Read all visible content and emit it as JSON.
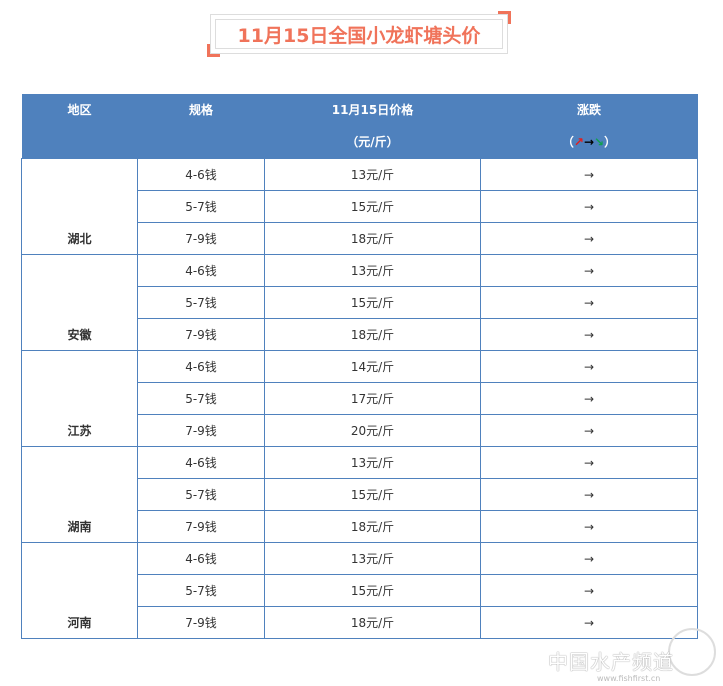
{
  "title": "11月15日全国小龙虾塘头价",
  "header": {
    "region": "地区",
    "spec": "规格",
    "price": "11月15日价格",
    "price_unit": "（元/斤）",
    "change": "涨跌",
    "legend_open": "（",
    "legend_up": "↗",
    "legend_flat": "→",
    "legend_down": "↘",
    "legend_close": "）"
  },
  "groups": [
    {
      "region": "湖北",
      "rows": [
        {
          "spec": "4-6钱",
          "price": "13元/斤",
          "change": "→"
        },
        {
          "spec": "5-7钱",
          "price": "15元/斤",
          "change": "→"
        },
        {
          "spec": "7-9钱",
          "price": "18元/斤",
          "change": "→"
        }
      ]
    },
    {
      "region": "安徽",
      "rows": [
        {
          "spec": "4-6钱",
          "price": "13元/斤",
          "change": "→"
        },
        {
          "spec": "5-7钱",
          "price": "15元/斤",
          "change": "→"
        },
        {
          "spec": "7-9钱",
          "price": "18元/斤",
          "change": "→"
        }
      ]
    },
    {
      "region": "江苏",
      "rows": [
        {
          "spec": "4-6钱",
          "price": "14元/斤",
          "change": "→"
        },
        {
          "spec": "5-7钱",
          "price": "17元/斤",
          "change": "→"
        },
        {
          "spec": "7-9钱",
          "price": "20元/斤",
          "change": "→"
        }
      ]
    },
    {
      "region": "湖南",
      "rows": [
        {
          "spec": "4-6钱",
          "price": "13元/斤",
          "change": "→"
        },
        {
          "spec": "5-7钱",
          "price": "15元/斤",
          "change": "→"
        },
        {
          "spec": "7-9钱",
          "price": "18元/斤",
          "change": "→"
        }
      ]
    },
    {
      "region": "河南",
      "rows": [
        {
          "spec": "4-6钱",
          "price": "13元/斤",
          "change": "→"
        },
        {
          "spec": "5-7钱",
          "price": "15元/斤",
          "change": "→"
        },
        {
          "spec": "7-9钱",
          "price": "18元/斤",
          "change": "→"
        }
      ]
    }
  ],
  "watermark": {
    "name": "中国水产频道",
    "url": "www.fishfirst.cn"
  },
  "colors": {
    "title": "#f0735a",
    "header_bg": "#4f81bd",
    "up": "#e02020",
    "down": "#10a050"
  }
}
